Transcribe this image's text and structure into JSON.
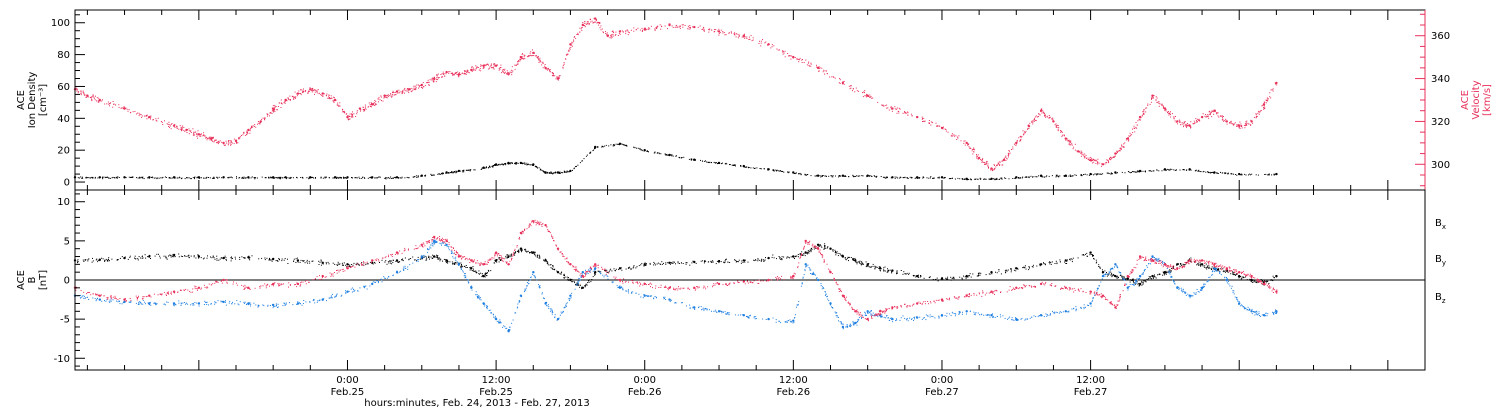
{
  "chart_data": [
    {
      "type": "scatter",
      "panel": "top",
      "ylabel_left": [
        "ACE",
        "Ion Density",
        "[cm⁻³]"
      ],
      "ylabel_right": [
        "ACE",
        "Velocity",
        "[km/s]"
      ],
      "ylim_left": [
        -5,
        108
      ],
      "ylim_right": [
        288,
        372
      ],
      "yticks_left": [
        0,
        20,
        40,
        60,
        80,
        100
      ],
      "yticks_right": [
        300,
        320,
        340,
        360
      ],
      "colors": {
        "density": "#000000",
        "velocity": "#e8305a"
      },
      "series": [
        {
          "axis": "left",
          "x": [
            -22,
            -20,
            -18,
            -16,
            -14,
            -12,
            -10,
            -8,
            -6,
            -5,
            -3,
            -1,
            0,
            2,
            4,
            6,
            8,
            9,
            11,
            12,
            13,
            14,
            15,
            16,
            17,
            18,
            20,
            22,
            24,
            26,
            28,
            30,
            32,
            34,
            36,
            38,
            40,
            42,
            44,
            46,
            48,
            50,
            52,
            54,
            56,
            58,
            60,
            62,
            64,
            66,
            68,
            70,
            72,
            75
          ],
          "values": [
            3,
            3,
            3,
            3,
            3,
            3,
            3,
            3,
            3,
            3,
            3,
            3,
            3,
            3,
            3,
            4,
            6,
            7,
            9,
            11,
            12,
            12,
            11,
            6,
            6,
            7,
            22,
            24,
            20,
            17,
            14,
            12,
            10,
            8,
            6,
            4,
            4,
            4,
            3,
            3,
            3,
            2,
            2,
            3,
            4,
            4,
            5,
            6,
            7,
            8,
            8,
            6,
            5,
            5
          ]
        },
        {
          "axis": "right",
          "x": [
            -22,
            -21,
            -20,
            -18,
            -16,
            -14,
            -13,
            -12,
            -11,
            -10,
            -9,
            -8,
            -7,
            -6,
            -5,
            -4,
            -3,
            -2,
            -1,
            0,
            1,
            2,
            3,
            4,
            5,
            6,
            7,
            8,
            9,
            10,
            11,
            12,
            13,
            14,
            15,
            16,
            17,
            18,
            19,
            20,
            21,
            22,
            24,
            26,
            28,
            30,
            32,
            34,
            36,
            38,
            40,
            42,
            44,
            46,
            48,
            50,
            51,
            52,
            53,
            54,
            55,
            56,
            57,
            58,
            59,
            60,
            61,
            62,
            63,
            64,
            65,
            66,
            67,
            68,
            69,
            70,
            71,
            72,
            73,
            74,
            75
          ],
          "values": [
            335,
            332,
            330,
            326,
            322,
            318,
            316,
            314,
            312,
            310,
            311,
            316,
            320,
            326,
            330,
            333,
            335,
            333,
            330,
            322,
            326,
            328,
            332,
            334,
            335,
            337,
            340,
            343,
            342,
            344,
            346,
            346,
            342,
            350,
            352,
            345,
            340,
            356,
            365,
            368,
            360,
            362,
            363,
            365,
            364,
            362,
            360,
            356,
            350,
            345,
            338,
            332,
            326,
            322,
            317,
            310,
            303,
            298,
            302,
            310,
            318,
            325,
            320,
            312,
            306,
            302,
            300,
            305,
            312,
            322,
            332,
            326,
            320,
            318,
            322,
            325,
            320,
            318,
            320,
            328,
            338
          ]
        }
      ]
    },
    {
      "type": "scatter",
      "panel": "bottom",
      "ylabel": [
        "ACE",
        "B",
        "[nT]"
      ],
      "ylim": [
        -11.5,
        11.5
      ],
      "yticks": [
        -10,
        -5,
        0,
        5,
        10
      ],
      "zero_line": true,
      "colors": {
        "Bx": "#000000",
        "By": "#1f7fe0",
        "Bz": "#e8305a"
      },
      "series": [
        {
          "name": "Bx",
          "x": [
            -22,
            -20,
            -18,
            -16,
            -14,
            -12,
            -10,
            -8,
            -6,
            -4,
            -2,
            0,
            2,
            4,
            6,
            7,
            8,
            9,
            10,
            11,
            12,
            13,
            14,
            15,
            16,
            17,
            18,
            19,
            20,
            22,
            24,
            26,
            28,
            30,
            32,
            34,
            36,
            37,
            38,
            39,
            40,
            41,
            42,
            43,
            44,
            46,
            48,
            50,
            52,
            54,
            56,
            58,
            60,
            61,
            62,
            63,
            64,
            65,
            66,
            67,
            68,
            69,
            70,
            71,
            72,
            73,
            74,
            75
          ],
          "values": [
            2.5,
            2.6,
            2.8,
            3.0,
            3.2,
            3.0,
            2.8,
            2.9,
            2.7,
            2.5,
            2.2,
            2.0,
            2.2,
            2.5,
            2.8,
            3.0,
            2.5,
            2.0,
            1.5,
            0.5,
            2.5,
            3.0,
            4.0,
            3.5,
            2.5,
            1.0,
            0.0,
            -1.0,
            1.0,
            1.5,
            2.0,
            2.2,
            2.3,
            2.4,
            2.5,
            2.8,
            3.0,
            3.5,
            4.5,
            4.0,
            3.0,
            2.5,
            2.0,
            1.5,
            1.2,
            0.5,
            0.2,
            0.5,
            1.0,
            1.5,
            2.0,
            2.5,
            3.5,
            1.0,
            0.5,
            0.2,
            -0.5,
            0.5,
            1.0,
            2.0,
            2.5,
            2.0,
            1.5,
            1.2,
            0.5,
            0.0,
            -0.3,
            0.5
          ]
        },
        {
          "name": "By",
          "x": [
            -22,
            -20,
            -18,
            -16,
            -14,
            -12,
            -10,
            -8,
            -6,
            -4,
            -2,
            0,
            2,
            4,
            6,
            7,
            8,
            9,
            10,
            11,
            12,
            13,
            14,
            15,
            16,
            17,
            18,
            19,
            20,
            22,
            24,
            26,
            28,
            30,
            32,
            34,
            36,
            37,
            38,
            39,
            40,
            41,
            42,
            43,
            44,
            46,
            48,
            50,
            52,
            54,
            56,
            58,
            60,
            61,
            62,
            63,
            64,
            65,
            66,
            67,
            68,
            69,
            70,
            71,
            72,
            73,
            74,
            75
          ],
          "values": [
            -2.0,
            -2.5,
            -2.8,
            -3.0,
            -3.0,
            -3.0,
            -2.8,
            -3.0,
            -3.2,
            -3.0,
            -2.5,
            -1.5,
            -0.5,
            1.0,
            3.0,
            5.0,
            4.5,
            2.0,
            -1.0,
            -3.0,
            -5.0,
            -6.5,
            -2.0,
            1.0,
            -3.0,
            -5.0,
            -2.0,
            1.0,
            1.5,
            -1.0,
            -2.0,
            -2.5,
            -3.5,
            -4.0,
            -4.5,
            -5.0,
            -5.2,
            2.0,
            0.0,
            -3.0,
            -6.0,
            -5.5,
            -4.0,
            -4.5,
            -5.0,
            -4.8,
            -4.5,
            -4.0,
            -4.5,
            -5.0,
            -4.5,
            -4.0,
            -3.0,
            0.5,
            2.0,
            -1.0,
            0.5,
            3.0,
            2.0,
            -1.0,
            -2.0,
            -1.0,
            1.5,
            0.0,
            -3.0,
            -4.0,
            -4.5,
            -4.0
          ]
        },
        {
          "name": "Bz",
          "x": [
            -22,
            -20,
            -18,
            -16,
            -14,
            -12,
            -10,
            -8,
            -6,
            -4,
            -2,
            0,
            2,
            4,
            6,
            7,
            8,
            9,
            10,
            11,
            12,
            13,
            14,
            15,
            16,
            17,
            18,
            19,
            20,
            22,
            24,
            26,
            28,
            30,
            32,
            34,
            36,
            37,
            38,
            39,
            40,
            41,
            42,
            43,
            44,
            46,
            48,
            50,
            52,
            54,
            56,
            58,
            60,
            61,
            62,
            63,
            64,
            65,
            66,
            67,
            68,
            69,
            70,
            71,
            72,
            73,
            74,
            75
          ],
          "values": [
            -1.0,
            -2.0,
            -2.5,
            -2.0,
            -1.5,
            -1.0,
            0.0,
            -1.0,
            -0.5,
            -0.5,
            0.5,
            1.5,
            2.5,
            3.5,
            4.5,
            5.5,
            5.0,
            3.0,
            2.5,
            2.0,
            3.5,
            2.0,
            6.0,
            7.5,
            7.0,
            4.0,
            2.0,
            0.5,
            2.0,
            0.0,
            -0.5,
            -1.0,
            -1.0,
            -0.5,
            -0.2,
            0.0,
            0.5,
            5.0,
            4.0,
            1.0,
            -2.0,
            -4.0,
            -5.0,
            -4.0,
            -3.5,
            -3.0,
            -2.5,
            -2.0,
            -1.5,
            -1.0,
            -0.5,
            -1.0,
            -1.5,
            -2.0,
            -3.5,
            0.5,
            3.0,
            2.5,
            2.0,
            1.5,
            2.5,
            2.5,
            2.0,
            1.5,
            1.0,
            0.5,
            -0.5,
            -1.5
          ]
        }
      ]
    }
  ],
  "legend_labels": [
    {
      "base": "B",
      "sub": "x"
    },
    {
      "base": "B",
      "sub": "y"
    },
    {
      "base": "B",
      "sub": "z"
    }
  ],
  "x_axis": {
    "xlim": [
      -22,
      87
    ],
    "ticks": [
      {
        "time": "0:00",
        "day": "Feb.25",
        "x": 0
      },
      {
        "time": "12:00",
        "day": "Feb.25",
        "x": 12
      },
      {
        "time": "0:00",
        "day": "Feb.26",
        "x": 24
      },
      {
        "time": "12:00",
        "day": "Feb.26",
        "x": 36
      },
      {
        "time": "0:00",
        "day": "Feb.27",
        "x": 48
      },
      {
        "time": "12:00",
        "day": "Feb.27",
        "x": 60
      }
    ],
    "xlabel": "hours:minutes, Feb. 24, 2013 - Feb. 27, 2013"
  }
}
